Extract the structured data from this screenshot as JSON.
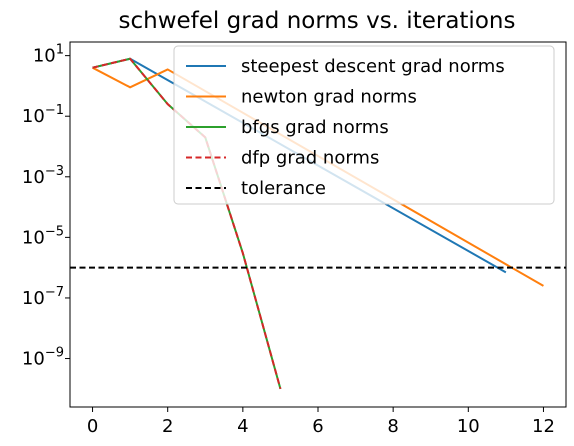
{
  "chart_data": {
    "type": "line",
    "title": "schwefel grad norms vs. iterations",
    "xlabel": "",
    "ylabel": "",
    "xlim": [
      -0.6,
      12.6
    ],
    "ylim": [
      -10.6,
      1.45
    ],
    "yscale": "log",
    "x_ticks": [
      0,
      2,
      4,
      6,
      8,
      10,
      12
    ],
    "x_tick_labels": [
      "0",
      "2",
      "4",
      "6",
      "8",
      "10",
      "12"
    ],
    "y_ticks_log10": [
      1,
      -1,
      -3,
      -5,
      -7,
      -9
    ],
    "y_tick_labels": [
      {
        "base": "10",
        "exp": "1"
      },
      {
        "base": "10",
        "exp": "−1"
      },
      {
        "base": "10",
        "exp": "−3"
      },
      {
        "base": "10",
        "exp": "−5"
      },
      {
        "base": "10",
        "exp": "−7"
      },
      {
        "base": "10",
        "exp": "−9"
      }
    ],
    "grid": false,
    "legend_position": "top-right",
    "series": [
      {
        "name": "steepest descent grad norms",
        "color": "#1f77b4",
        "dash": "solid",
        "x": [
          0,
          1,
          11
        ],
        "y": [
          4.0,
          7.9,
          7e-07
        ]
      },
      {
        "name": "newton grad norms",
        "color": "#ff7f0e",
        "dash": "solid",
        "x": [
          0,
          1,
          2,
          12
        ],
        "y": [
          4.0,
          0.9,
          3.5,
          2.5e-07
        ]
      },
      {
        "name": "bfgs grad norms",
        "color": "#2ca02c",
        "dash": "solid",
        "x": [
          0,
          1,
          2,
          3,
          4,
          5
        ],
        "y": [
          4.0,
          7.9,
          0.25,
          0.02,
          3e-06,
          1e-10
        ]
      },
      {
        "name": "dfp grad norms",
        "color": "#d62728",
        "dash": "dashed",
        "x": [
          0,
          1,
          2,
          3,
          4,
          5
        ],
        "y": [
          4.0,
          7.9,
          0.25,
          0.02,
          3e-06,
          1e-10
        ]
      },
      {
        "name": "tolerance",
        "color": "#000000",
        "dash": "dashed",
        "type": "hline",
        "y": 1e-06
      }
    ]
  }
}
